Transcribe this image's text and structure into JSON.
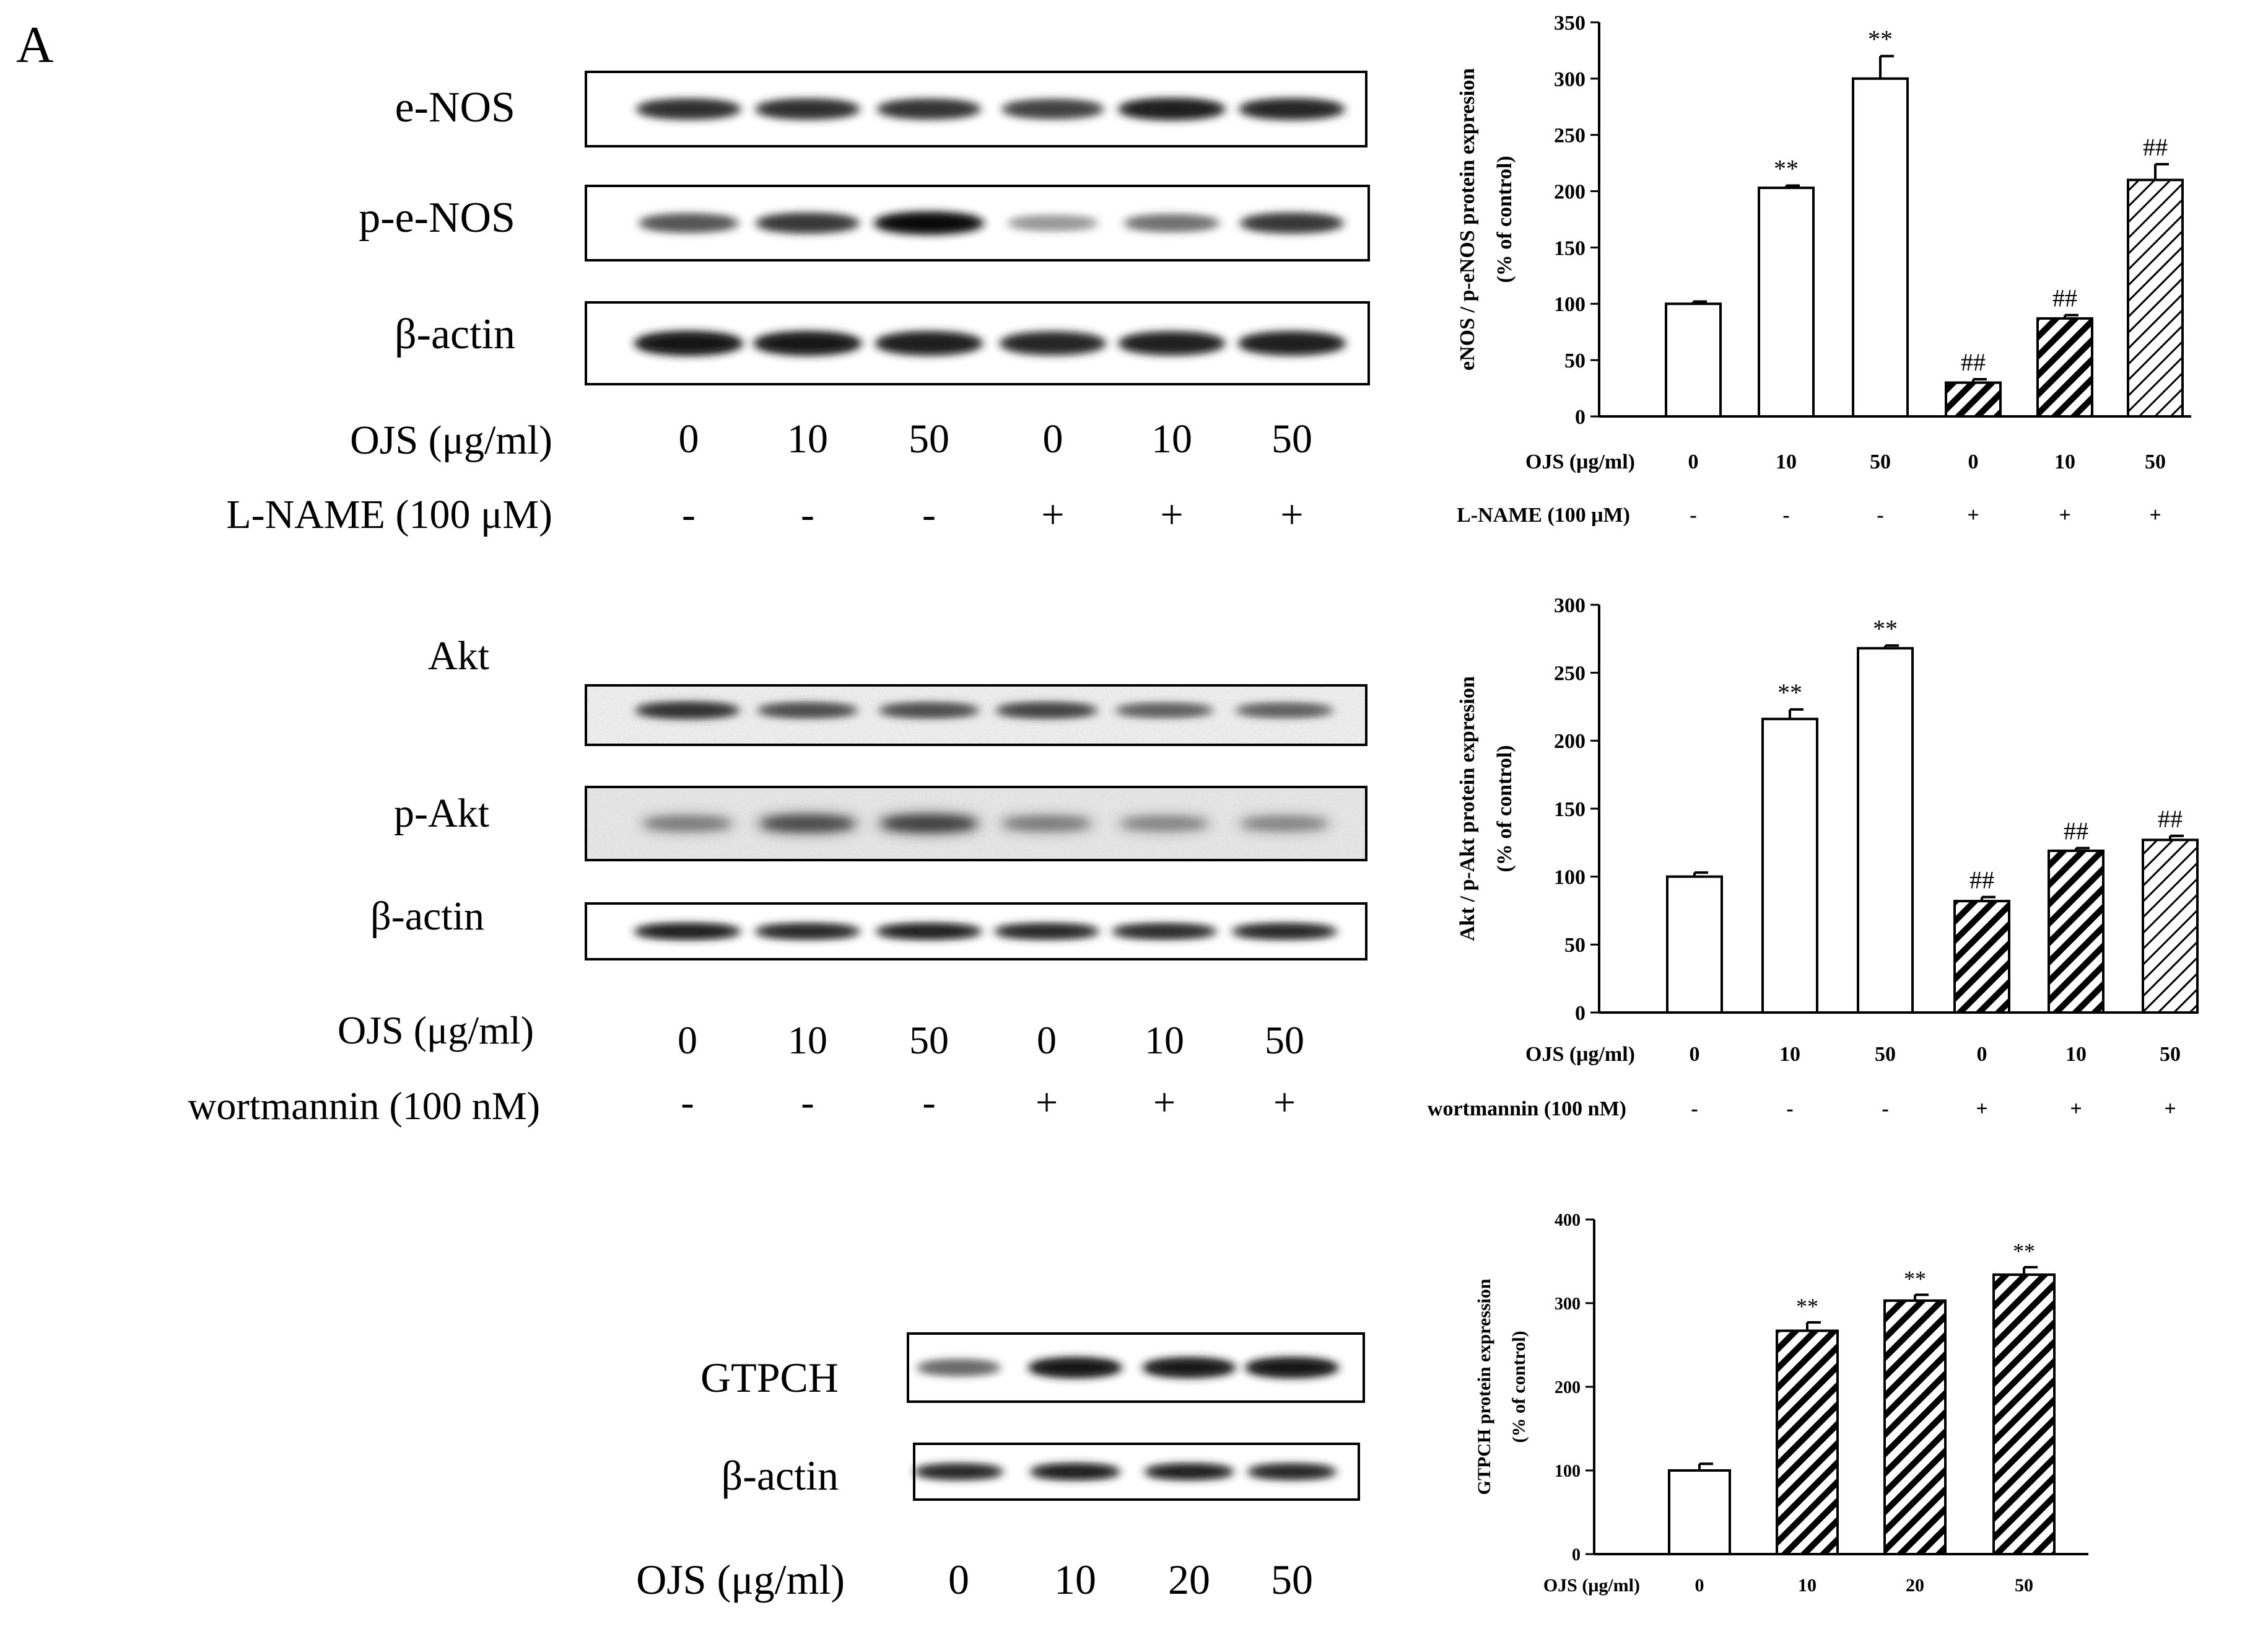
{
  "panel_label": "A",
  "blots": [
    {
      "rows": [
        {
          "label": "e-NOS",
          "style": "enos",
          "lane_intensity": [
            0.75,
            0.75,
            0.72,
            0.65,
            0.85,
            0.8
          ]
        },
        {
          "label": "p-e-NOS",
          "style": "penos",
          "lane_intensity": [
            0.55,
            0.7,
            0.95,
            0.2,
            0.4,
            0.7
          ]
        },
        {
          "label": "β-actin",
          "style": "actin",
          "lane_intensity": [
            0.9,
            0.88,
            0.85,
            0.8,
            0.82,
            0.85
          ]
        }
      ],
      "condition_rows": [
        {
          "label": "OJS (μg/ml)",
          "values": [
            "0",
            "10",
            "50",
            "0",
            "10",
            "50"
          ]
        },
        {
          "label": "L-NAME (100 μM)",
          "values": [
            "-",
            "-",
            "-",
            "+",
            "+",
            "+"
          ]
        }
      ]
    },
    {
      "rows": [
        {
          "label": "Akt",
          "style": "akt",
          "lane_intensity": [
            0.75,
            0.6,
            0.6,
            0.65,
            0.5,
            0.5
          ]
        },
        {
          "label": "p-Akt",
          "style": "pakt",
          "lane_intensity": [
            0.35,
            0.6,
            0.65,
            0.35,
            0.3,
            0.3
          ]
        },
        {
          "label": "β-actin",
          "style": "actin2",
          "lane_intensity": [
            0.85,
            0.8,
            0.82,
            0.8,
            0.78,
            0.8
          ]
        }
      ],
      "condition_rows": [
        {
          "label": "OJS (μg/ml)",
          "values": [
            "0",
            "10",
            "50",
            "0",
            "10",
            "50"
          ]
        },
        {
          "label": "wortmannin (100 nM)",
          "values": [
            "-",
            "-",
            "-",
            "+",
            "+",
            "+"
          ]
        }
      ]
    },
    {
      "rows": [
        {
          "label": "GTPCH",
          "style": "gtpch",
          "lane_intensity": [
            0.45,
            0.9,
            0.88,
            0.9
          ]
        },
        {
          "label": "β-actin",
          "style": "actin3",
          "lane_intensity": [
            0.8,
            0.85,
            0.82,
            0.8
          ]
        }
      ],
      "condition_rows": [
        {
          "label": "OJS (μg/ml)",
          "values": [
            "0",
            "10",
            "20",
            "50"
          ]
        }
      ]
    }
  ],
  "chart_data": [
    {
      "type": "bar",
      "ylabel": "eNOS / p-eNOS protein expresion",
      "ylabel2": "(% of control)",
      "ylim": [
        0,
        350
      ],
      "yticks": [
        0,
        50,
        100,
        150,
        200,
        250,
        300,
        350
      ],
      "categories": [
        "0",
        "10",
        "50",
        "0",
        "10",
        "50"
      ],
      "values": [
        100,
        203,
        300,
        30,
        87,
        210
      ],
      "errors": [
        2,
        2,
        20,
        3,
        3,
        14
      ],
      "fills": [
        "white",
        "white",
        "white",
        "dense",
        "dense",
        "light"
      ],
      "annotations": [
        "",
        "**",
        "**",
        "##",
        "##",
        "##"
      ],
      "condition_rows": [
        {
          "label": "OJS (μg/ml)",
          "values": [
            "0",
            "10",
            "50",
            "0",
            "10",
            "50"
          ]
        },
        {
          "label": "L-NAME (100 μM)",
          "values": [
            "-",
            "-",
            "-",
            "+",
            "+",
            "+"
          ]
        }
      ]
    },
    {
      "type": "bar",
      "ylabel": "Akt / p-Akt protein expresion",
      "ylabel2": "(% of control)",
      "ylim": [
        0,
        300
      ],
      "yticks": [
        0,
        50,
        100,
        150,
        200,
        250,
        300
      ],
      "categories": [
        "0",
        "10",
        "50",
        "0",
        "10",
        "50"
      ],
      "values": [
        100,
        216,
        268,
        82,
        119,
        127
      ],
      "errors": [
        3,
        7,
        2,
        3,
        2,
        3
      ],
      "fills": [
        "white",
        "white",
        "white",
        "dense",
        "dense",
        "light"
      ],
      "annotations": [
        "",
        "**",
        "**",
        "##",
        "##",
        "##"
      ],
      "condition_rows": [
        {
          "label": "OJS (μg/ml)",
          "values": [
            "0",
            "10",
            "50",
            "0",
            "10",
            "50"
          ]
        },
        {
          "label": "wortmannin (100 nM)",
          "values": [
            "-",
            "-",
            "-",
            "+",
            "+",
            "+"
          ]
        }
      ]
    },
    {
      "type": "bar",
      "ylabel": "GTPCH protein expression",
      "ylabel2": "(% of control)",
      "ylim": [
        0,
        400
      ],
      "yticks": [
        0,
        100,
        200,
        300,
        400
      ],
      "categories": [
        "0",
        "10",
        "20",
        "50"
      ],
      "values": [
        100,
        267,
        303,
        334
      ],
      "errors": [
        8,
        10,
        7,
        9
      ],
      "fills": [
        "white",
        "dense",
        "dense",
        "dense"
      ],
      "annotations": [
        "",
        "**",
        "**",
        "**"
      ],
      "condition_rows": [
        {
          "label": "OJS (μg/ml)",
          "values": [
            "0",
            "10",
            "20",
            "50"
          ]
        }
      ]
    }
  ]
}
